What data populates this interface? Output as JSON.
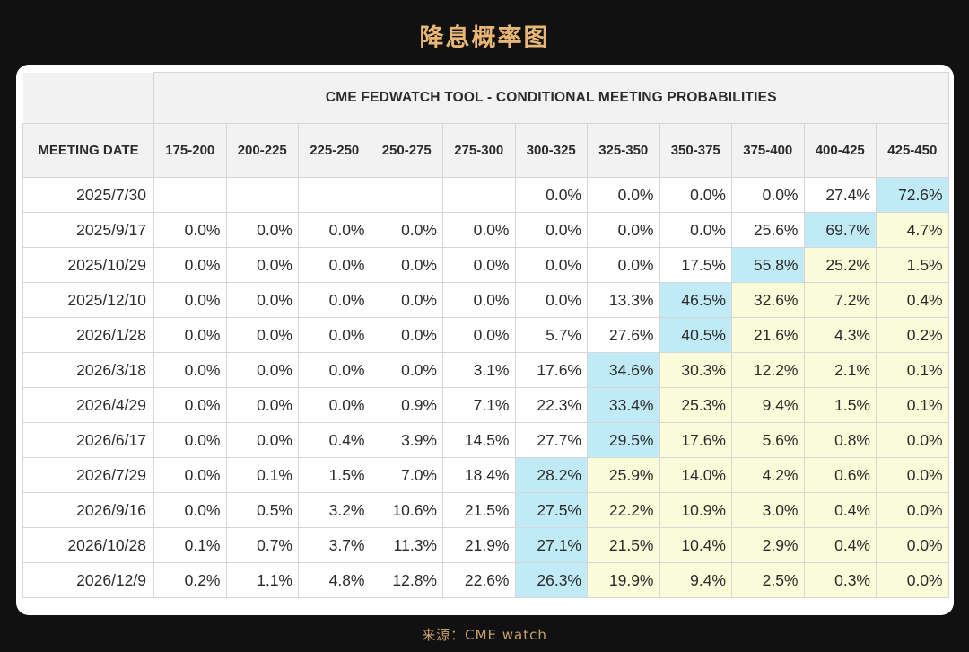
{
  "page": {
    "title": "降息概率图",
    "source": "来源：CME watch"
  },
  "table": {
    "banner": "CME FEDWATCH TOOL - CONDITIONAL MEETING PROBABILITIES",
    "date_header": "MEETING DATE"
  },
  "colors": {
    "highlight_max": "#bfeaf6",
    "highlight_below_target": "#fafbd8",
    "title_accent": "#e8b776"
  },
  "chart_data": {
    "type": "table",
    "title": "CME FEDWATCH TOOL - CONDITIONAL MEETING PROBABILITIES",
    "row_header": "MEETING DATE",
    "columns": [
      "175-200",
      "200-225",
      "225-250",
      "250-275",
      "275-300",
      "300-325",
      "325-350",
      "350-375",
      "375-400",
      "400-425",
      "425-450"
    ],
    "rows": [
      {
        "date": "2025/7/30",
        "values": [
          "",
          "",
          "",
          "",
          "",
          "0.0%",
          "0.0%",
          "0.0%",
          "0.0%",
          "27.4%",
          "72.6%"
        ]
      },
      {
        "date": "2025/9/17",
        "values": [
          "0.0%",
          "0.0%",
          "0.0%",
          "0.0%",
          "0.0%",
          "0.0%",
          "0.0%",
          "0.0%",
          "25.6%",
          "69.7%",
          "4.7%"
        ]
      },
      {
        "date": "2025/10/29",
        "values": [
          "0.0%",
          "0.0%",
          "0.0%",
          "0.0%",
          "0.0%",
          "0.0%",
          "0.0%",
          "17.5%",
          "55.8%",
          "25.2%",
          "1.5%"
        ]
      },
      {
        "date": "2025/12/10",
        "values": [
          "0.0%",
          "0.0%",
          "0.0%",
          "0.0%",
          "0.0%",
          "0.0%",
          "13.3%",
          "46.5%",
          "32.6%",
          "7.2%",
          "0.4%"
        ]
      },
      {
        "date": "2026/1/28",
        "values": [
          "0.0%",
          "0.0%",
          "0.0%",
          "0.0%",
          "0.0%",
          "5.7%",
          "27.6%",
          "40.5%",
          "21.6%",
          "4.3%",
          "0.2%"
        ]
      },
      {
        "date": "2026/3/18",
        "values": [
          "0.0%",
          "0.0%",
          "0.0%",
          "0.0%",
          "3.1%",
          "17.6%",
          "34.6%",
          "30.3%",
          "12.2%",
          "2.1%",
          "0.1%"
        ]
      },
      {
        "date": "2026/4/29",
        "values": [
          "0.0%",
          "0.0%",
          "0.0%",
          "0.9%",
          "7.1%",
          "22.3%",
          "33.4%",
          "25.3%",
          "9.4%",
          "1.5%",
          "0.1%"
        ]
      },
      {
        "date": "2026/6/17",
        "values": [
          "0.0%",
          "0.0%",
          "0.4%",
          "3.9%",
          "14.5%",
          "27.7%",
          "29.5%",
          "17.6%",
          "5.6%",
          "0.8%",
          "0.0%"
        ]
      },
      {
        "date": "2026/7/29",
        "values": [
          "0.0%",
          "0.1%",
          "1.5%",
          "7.0%",
          "18.4%",
          "28.2%",
          "25.9%",
          "14.0%",
          "4.2%",
          "0.6%",
          "0.0%"
        ]
      },
      {
        "date": "2026/9/16",
        "values": [
          "0.0%",
          "0.5%",
          "3.2%",
          "10.6%",
          "21.5%",
          "27.5%",
          "22.2%",
          "10.9%",
          "3.0%",
          "0.4%",
          "0.0%"
        ]
      },
      {
        "date": "2026/10/28",
        "values": [
          "0.1%",
          "0.7%",
          "3.7%",
          "11.3%",
          "21.9%",
          "27.1%",
          "21.5%",
          "10.4%",
          "2.9%",
          "0.4%",
          "0.0%"
        ]
      },
      {
        "date": "2026/12/9",
        "values": [
          "0.2%",
          "1.1%",
          "4.8%",
          "12.8%",
          "22.6%",
          "26.3%",
          "19.9%",
          "9.4%",
          "2.5%",
          "0.3%",
          "0.0%"
        ]
      }
    ]
  }
}
